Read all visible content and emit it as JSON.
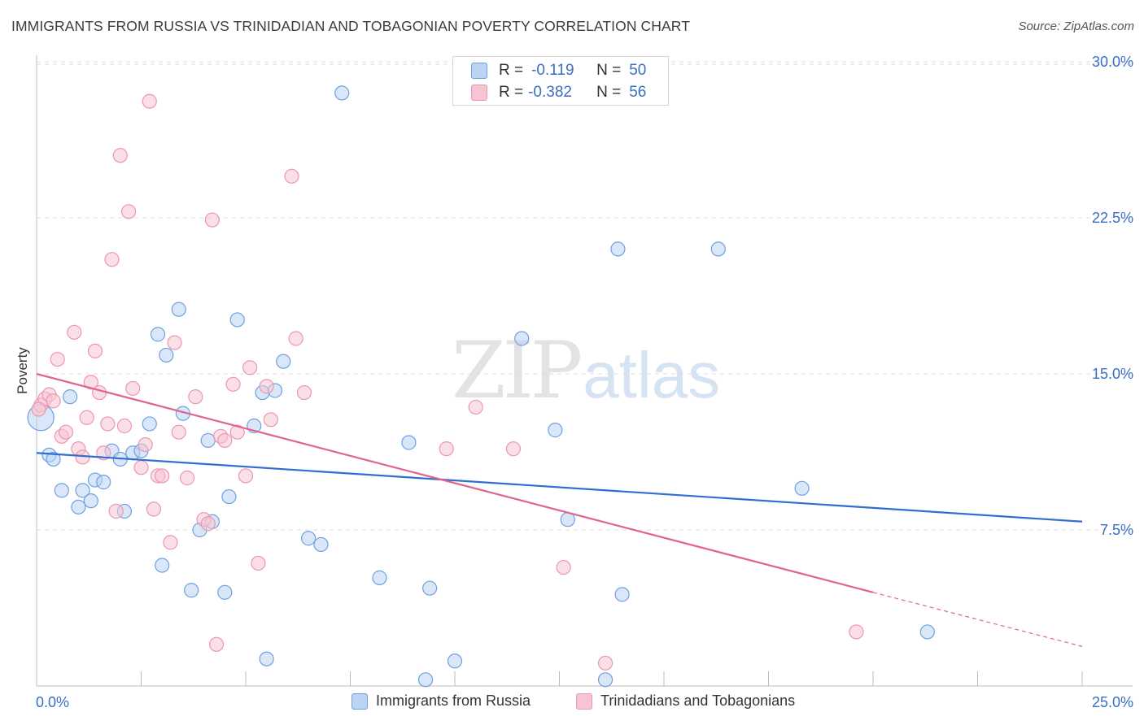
{
  "title": "IMMIGRANTS FROM RUSSIA VS TRINIDADIAN AND TOBAGONIAN POVERTY CORRELATION CHART",
  "source": "Source: ZipAtlas.com",
  "watermark": {
    "zip": "ZIP",
    "atlas": "atlas"
  },
  "legend_top": {
    "rows": [
      {
        "r_label": "R =",
        "r_value": "-0.119",
        "n_label": "N =",
        "n_value": "50"
      },
      {
        "r_label": "R =",
        "r_value": "-0.382",
        "n_label": "N =",
        "n_value": "56"
      }
    ]
  },
  "chart_data": {
    "type": "scatter",
    "title": "IMMIGRANTS FROM RUSSIA VS TRINIDADIAN AND TOBAGONIAN POVERTY CORRELATION CHART",
    "xlabel": "",
    "ylabel": "Poverty",
    "xlim": [
      0,
      25
    ],
    "ylim": [
      0,
      31
    ],
    "x_tick_labels": [
      "0.0%",
      "25.0%"
    ],
    "y_ticks": [
      7.5,
      15.0,
      22.5,
      30.0
    ],
    "y_tick_labels": [
      "7.5%",
      "15.0%",
      "22.5%",
      "30.0%"
    ],
    "grid": "horizontal dashed",
    "legend_position": "bottom",
    "series": [
      {
        "name": "Immigrants from Russia",
        "color": "#6fa0e0",
        "fill": "#bcd4f3",
        "line_color": "#2f6fcf",
        "trend": {
          "x": [
            0,
            25
          ],
          "y": [
            11.2,
            7.9
          ]
        },
        "points": [
          [
            0.1,
            12.9
          ],
          [
            0.3,
            11.1
          ],
          [
            0.4,
            10.9
          ],
          [
            0.8,
            13.9
          ],
          [
            0.6,
            9.4
          ],
          [
            1.0,
            8.6
          ],
          [
            1.1,
            9.4
          ],
          [
            1.3,
            8.9
          ],
          [
            1.4,
            9.9
          ],
          [
            1.6,
            9.8
          ],
          [
            1.8,
            11.3
          ],
          [
            2.0,
            10.9
          ],
          [
            2.1,
            8.4
          ],
          [
            2.3,
            11.2
          ],
          [
            2.5,
            11.3
          ],
          [
            2.7,
            12.6
          ],
          [
            2.9,
            16.9
          ],
          [
            3.0,
            5.8
          ],
          [
            3.1,
            15.9
          ],
          [
            3.4,
            18.1
          ],
          [
            3.5,
            13.1
          ],
          [
            3.7,
            4.6
          ],
          [
            3.9,
            7.5
          ],
          [
            4.1,
            11.8
          ],
          [
            4.2,
            7.9
          ],
          [
            4.5,
            4.5
          ],
          [
            4.6,
            9.1
          ],
          [
            4.8,
            17.6
          ],
          [
            5.2,
            12.5
          ],
          [
            5.4,
            14.1
          ],
          [
            5.5,
            1.3
          ],
          [
            5.7,
            14.2
          ],
          [
            5.9,
            15.6
          ],
          [
            6.5,
            7.1
          ],
          [
            6.8,
            6.8
          ],
          [
            7.3,
            28.5
          ],
          [
            8.2,
            5.2
          ],
          [
            8.9,
            11.7
          ],
          [
            9.3,
            0.3
          ],
          [
            9.4,
            4.7
          ],
          [
            10.0,
            1.2
          ],
          [
            11.6,
            16.7
          ],
          [
            12.4,
            12.3
          ],
          [
            12.7,
            8.0
          ],
          [
            13.6,
            0.3
          ],
          [
            13.9,
            21.0
          ],
          [
            14.0,
            4.4
          ],
          [
            16.3,
            21.0
          ],
          [
            18.3,
            9.5
          ],
          [
            21.3,
            2.6
          ]
        ]
      },
      {
        "name": "Trinidadians and Tobagonians",
        "color": "#ec96b0",
        "fill": "#f7c4d4",
        "line_color": "#e0648e",
        "trend": {
          "x": [
            0,
            20
          ],
          "y": [
            15.0,
            4.5
          ]
        },
        "trend_dashed": {
          "x": [
            20,
            25
          ],
          "y": [
            4.5,
            1.9
          ]
        },
        "points": [
          [
            0.1,
            13.5
          ],
          [
            0.2,
            13.8
          ],
          [
            0.3,
            14.0
          ],
          [
            0.4,
            13.7
          ],
          [
            0.5,
            15.7
          ],
          [
            0.6,
            12.0
          ],
          [
            0.7,
            12.2
          ],
          [
            0.9,
            17.0
          ],
          [
            1.0,
            11.4
          ],
          [
            1.1,
            11.0
          ],
          [
            1.2,
            12.9
          ],
          [
            1.3,
            14.6
          ],
          [
            1.4,
            16.1
          ],
          [
            1.5,
            14.1
          ],
          [
            1.6,
            11.2
          ],
          [
            1.7,
            12.6
          ],
          [
            1.8,
            20.5
          ],
          [
            1.9,
            8.4
          ],
          [
            2.0,
            25.5
          ],
          [
            2.1,
            12.5
          ],
          [
            2.2,
            22.8
          ],
          [
            2.3,
            14.3
          ],
          [
            2.5,
            10.5
          ],
          [
            2.6,
            11.6
          ],
          [
            2.7,
            28.1
          ],
          [
            2.8,
            8.5
          ],
          [
            2.9,
            10.1
          ],
          [
            3.0,
            10.1
          ],
          [
            3.2,
            6.9
          ],
          [
            3.3,
            16.5
          ],
          [
            3.4,
            12.2
          ],
          [
            3.6,
            10.0
          ],
          [
            3.8,
            13.9
          ],
          [
            4.0,
            8.0
          ],
          [
            4.1,
            7.8
          ],
          [
            4.2,
            22.4
          ],
          [
            4.3,
            2.0
          ],
          [
            4.4,
            12.0
          ],
          [
            4.5,
            11.8
          ],
          [
            4.7,
            14.5
          ],
          [
            4.8,
            12.2
          ],
          [
            5.0,
            10.1
          ],
          [
            5.1,
            15.3
          ],
          [
            5.3,
            5.9
          ],
          [
            5.5,
            14.4
          ],
          [
            5.6,
            12.8
          ],
          [
            6.1,
            24.5
          ],
          [
            6.2,
            16.7
          ],
          [
            6.4,
            14.1
          ],
          [
            9.8,
            11.4
          ],
          [
            10.5,
            13.4
          ],
          [
            11.4,
            11.4
          ],
          [
            12.6,
            5.7
          ],
          [
            13.6,
            1.1
          ],
          [
            19.6,
            2.6
          ],
          [
            0.05,
            13.3
          ]
        ]
      }
    ]
  }
}
